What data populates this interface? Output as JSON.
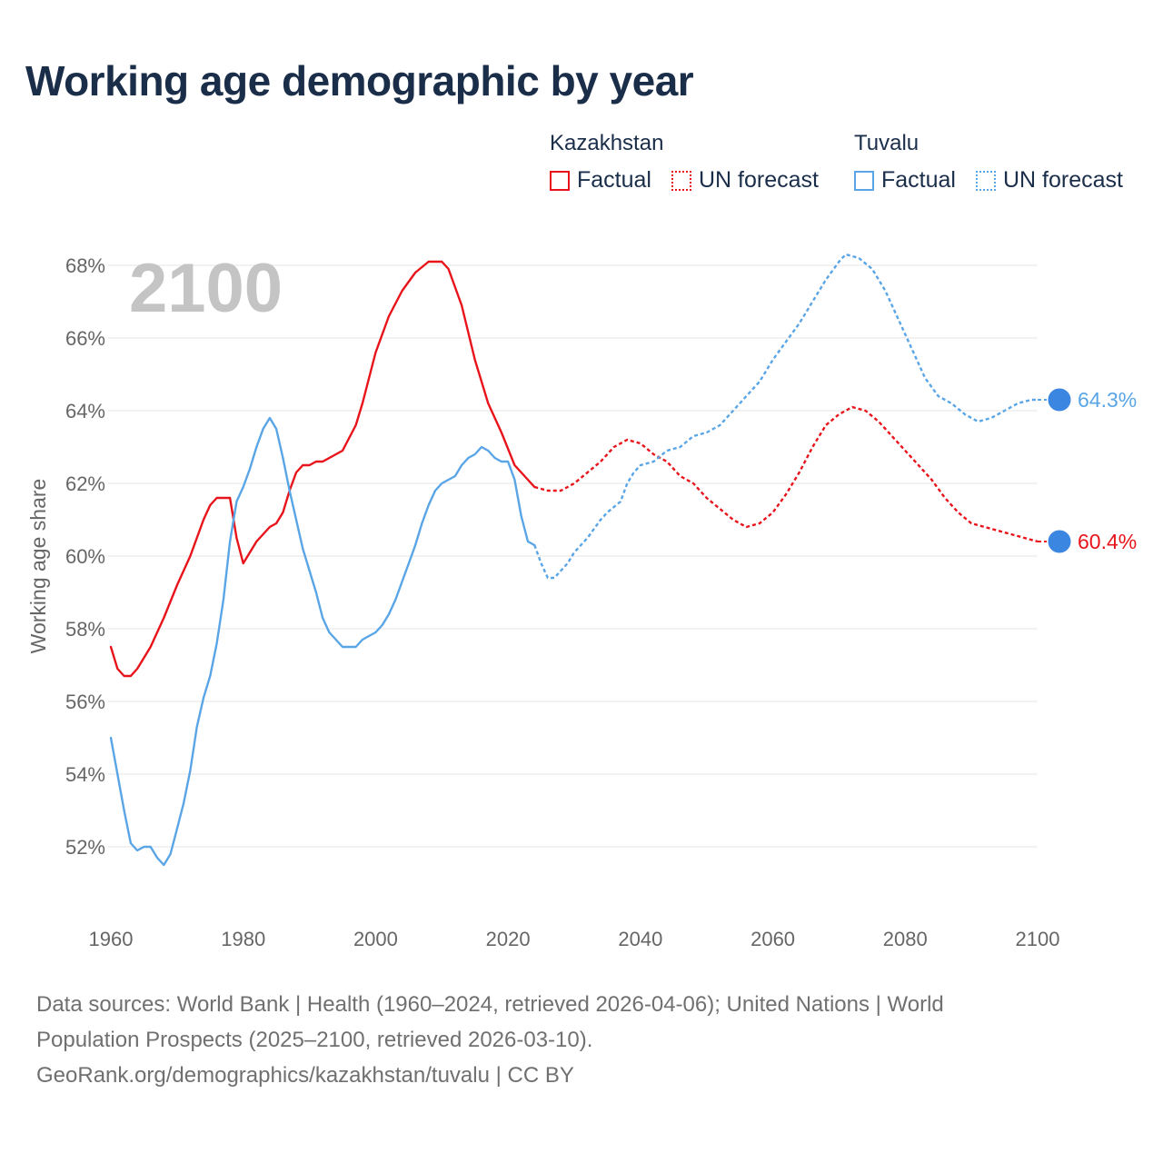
{
  "title": "Working age demographic by year",
  "legend": {
    "groups": [
      {
        "name": "Kazakhstan",
        "color": "#e8141b",
        "factual_label": "Factual",
        "forecast_label": "UN forecast"
      },
      {
        "name": "Tuvalu",
        "color": "#5aa5e6",
        "factual_label": "Factual",
        "forecast_label": "UN forecast"
      }
    ]
  },
  "year_watermark": "2100",
  "footer": {
    "line1": "Data sources: World Bank | Health (1960–2024, retrieved 2026-04-06); United Nations | World",
    "line2": "Population Prospects (2025–2100, retrieved 2026-03-10).",
    "line3": "GeoRank.org/demographics/kazakhstan/tuvalu | CC BY"
  },
  "chart_data": {
    "type": "line",
    "title": "Working age demographic by year",
    "xlabel": "",
    "ylabel": "Working age share",
    "xlim": [
      1960,
      2100
    ],
    "ylim": [
      50.3,
      69.3
    ],
    "x_ticks": [
      1960,
      1980,
      2000,
      2020,
      2040,
      2060,
      2080,
      2100
    ],
    "x_tick_labels": [
      "1960",
      "1980",
      "2000",
      "2020",
      "2040",
      "2060",
      "2080",
      "2100"
    ],
    "y_ticks": [
      52,
      54,
      56,
      58,
      60,
      62,
      64,
      66,
      68
    ],
    "y_tick_labels": [
      "52%",
      "54%",
      "56%",
      "58%",
      "60%",
      "62%",
      "64%",
      "66%",
      "68%"
    ],
    "grid": true,
    "legend_position": "top-right",
    "forecast_start": 2024,
    "series": [
      {
        "name": "Kazakhstan",
        "color": "#e8141b",
        "end_label": "60.4%",
        "points": [
          [
            1960,
            57.5
          ],
          [
            1961,
            56.9
          ],
          [
            1962,
            56.7
          ],
          [
            1963,
            56.7
          ],
          [
            1964,
            56.9
          ],
          [
            1966,
            57.5
          ],
          [
            1968,
            58.3
          ],
          [
            1970,
            59.2
          ],
          [
            1972,
            60.0
          ],
          [
            1974,
            61.0
          ],
          [
            1975,
            61.4
          ],
          [
            1976,
            61.6
          ],
          [
            1978,
            61.6
          ],
          [
            1979,
            60.5
          ],
          [
            1980,
            59.8
          ],
          [
            1982,
            60.4
          ],
          [
            1984,
            60.8
          ],
          [
            1985,
            60.9
          ],
          [
            1986,
            61.2
          ],
          [
            1987,
            61.8
          ],
          [
            1988,
            62.3
          ],
          [
            1989,
            62.5
          ],
          [
            1990,
            62.5
          ],
          [
            1991,
            62.6
          ],
          [
            1992,
            62.6
          ],
          [
            1995,
            62.9
          ],
          [
            1997,
            63.6
          ],
          [
            1998,
            64.2
          ],
          [
            2000,
            65.6
          ],
          [
            2002,
            66.6
          ],
          [
            2004,
            67.3
          ],
          [
            2006,
            67.8
          ],
          [
            2008,
            68.1
          ],
          [
            2010,
            68.1
          ],
          [
            2011,
            67.9
          ],
          [
            2013,
            66.9
          ],
          [
            2015,
            65.4
          ],
          [
            2017,
            64.2
          ],
          [
            2019,
            63.4
          ],
          [
            2021,
            62.5
          ],
          [
            2023,
            62.1
          ],
          [
            2024,
            61.9
          ],
          [
            2026,
            61.8
          ],
          [
            2028,
            61.8
          ],
          [
            2030,
            62.0
          ],
          [
            2032,
            62.3
          ],
          [
            2034,
            62.6
          ],
          [
            2036,
            63.0
          ],
          [
            2038,
            63.2
          ],
          [
            2040,
            63.1
          ],
          [
            2042,
            62.8
          ],
          [
            2044,
            62.6
          ],
          [
            2046,
            62.2
          ],
          [
            2048,
            62.0
          ],
          [
            2050,
            61.6
          ],
          [
            2052,
            61.3
          ],
          [
            2054,
            61.0
          ],
          [
            2056,
            60.8
          ],
          [
            2058,
            60.9
          ],
          [
            2060,
            61.2
          ],
          [
            2062,
            61.7
          ],
          [
            2064,
            62.3
          ],
          [
            2066,
            63.0
          ],
          [
            2068,
            63.6
          ],
          [
            2070,
            63.9
          ],
          [
            2072,
            64.1
          ],
          [
            2074,
            64.0
          ],
          [
            2076,
            63.7
          ],
          [
            2078,
            63.3
          ],
          [
            2080,
            62.9
          ],
          [
            2082,
            62.5
          ],
          [
            2084,
            62.1
          ],
          [
            2086,
            61.6
          ],
          [
            2088,
            61.2
          ],
          [
            2090,
            60.9
          ],
          [
            2092,
            60.8
          ],
          [
            2094,
            60.7
          ],
          [
            2096,
            60.6
          ],
          [
            2098,
            60.5
          ],
          [
            2100,
            60.4
          ]
        ]
      },
      {
        "name": "Tuvalu",
        "color": "#5aa5e6",
        "end_label": "64.3%",
        "points": [
          [
            1960,
            55.0
          ],
          [
            1961,
            54.0
          ],
          [
            1962,
            53.0
          ],
          [
            1963,
            52.1
          ],
          [
            1964,
            51.9
          ],
          [
            1965,
            52.0
          ],
          [
            1966,
            52.0
          ],
          [
            1967,
            51.7
          ],
          [
            1968,
            51.5
          ],
          [
            1969,
            51.8
          ],
          [
            1970,
            52.5
          ],
          [
            1971,
            53.2
          ],
          [
            1972,
            54.1
          ],
          [
            1973,
            55.3
          ],
          [
            1974,
            56.1
          ],
          [
            1975,
            56.7
          ],
          [
            1976,
            57.6
          ],
          [
            1977,
            58.8
          ],
          [
            1978,
            60.4
          ],
          [
            1979,
            61.5
          ],
          [
            1980,
            61.9
          ],
          [
            1981,
            62.4
          ],
          [
            1982,
            63.0
          ],
          [
            1983,
            63.5
          ],
          [
            1984,
            63.8
          ],
          [
            1985,
            63.5
          ],
          [
            1986,
            62.7
          ],
          [
            1987,
            61.8
          ],
          [
            1988,
            61.0
          ],
          [
            1989,
            60.2
          ],
          [
            1990,
            59.6
          ],
          [
            1991,
            59.0
          ],
          [
            1992,
            58.3
          ],
          [
            1993,
            57.9
          ],
          [
            1994,
            57.7
          ],
          [
            1995,
            57.5
          ],
          [
            1996,
            57.5
          ],
          [
            1997,
            57.5
          ],
          [
            1998,
            57.7
          ],
          [
            1999,
            57.8
          ],
          [
            2000,
            57.9
          ],
          [
            2001,
            58.1
          ],
          [
            2002,
            58.4
          ],
          [
            2003,
            58.8
          ],
          [
            2004,
            59.3
          ],
          [
            2005,
            59.8
          ],
          [
            2006,
            60.3
          ],
          [
            2007,
            60.9
          ],
          [
            2008,
            61.4
          ],
          [
            2009,
            61.8
          ],
          [
            2010,
            62.0
          ],
          [
            2011,
            62.1
          ],
          [
            2012,
            62.2
          ],
          [
            2013,
            62.5
          ],
          [
            2014,
            62.7
          ],
          [
            2015,
            62.8
          ],
          [
            2016,
            63.0
          ],
          [
            2017,
            62.9
          ],
          [
            2018,
            62.7
          ],
          [
            2019,
            62.6
          ],
          [
            2020,
            62.6
          ],
          [
            2021,
            62.1
          ],
          [
            2022,
            61.1
          ],
          [
            2023,
            60.4
          ],
          [
            2024,
            60.3
          ],
          [
            2025,
            59.8
          ],
          [
            2026,
            59.4
          ],
          [
            2027,
            59.4
          ],
          [
            2028,
            59.6
          ],
          [
            2029,
            59.8
          ],
          [
            2030,
            60.1
          ],
          [
            2032,
            60.5
          ],
          [
            2034,
            61.0
          ],
          [
            2035,
            61.2
          ],
          [
            2037,
            61.5
          ],
          [
            2038,
            62.0
          ],
          [
            2039,
            62.3
          ],
          [
            2040,
            62.5
          ],
          [
            2042,
            62.6
          ],
          [
            2044,
            62.9
          ],
          [
            2046,
            63.0
          ],
          [
            2048,
            63.3
          ],
          [
            2050,
            63.4
          ],
          [
            2052,
            63.6
          ],
          [
            2054,
            64.0
          ],
          [
            2056,
            64.4
          ],
          [
            2058,
            64.8
          ],
          [
            2060,
            65.4
          ],
          [
            2062,
            65.9
          ],
          [
            2064,
            66.4
          ],
          [
            2066,
            67.0
          ],
          [
            2068,
            67.6
          ],
          [
            2070,
            68.1
          ],
          [
            2071,
            68.3
          ],
          [
            2073,
            68.2
          ],
          [
            2075,
            67.9
          ],
          [
            2077,
            67.3
          ],
          [
            2079,
            66.5
          ],
          [
            2081,
            65.7
          ],
          [
            2083,
            64.9
          ],
          [
            2085,
            64.4
          ],
          [
            2087,
            64.2
          ],
          [
            2089,
            63.9
          ],
          [
            2091,
            63.7
          ],
          [
            2093,
            63.8
          ],
          [
            2095,
            64.0
          ],
          [
            2097,
            64.2
          ],
          [
            2099,
            64.3
          ],
          [
            2100,
            64.3
          ]
        ]
      }
    ]
  }
}
